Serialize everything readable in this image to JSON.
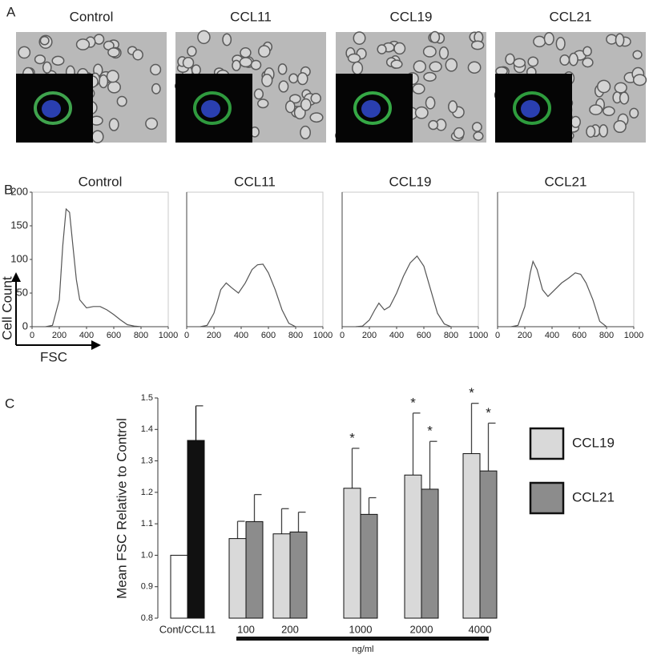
{
  "panel_labels": [
    "A",
    "B",
    "C"
  ],
  "images": {
    "titles": [
      "Control",
      "CCL11",
      "CCL19",
      "CCL21"
    ]
  },
  "flow_axes": {
    "y_label": "Cell Count",
    "x_label": "FSC"
  },
  "chart_data": [
    {
      "type": "line",
      "title": "Control",
      "color": "#555555",
      "x": [
        100,
        150,
        200,
        225,
        250,
        275,
        300,
        325,
        350,
        400,
        450,
        500,
        550,
        600,
        650,
        700,
        750,
        800
      ],
      "values": [
        0,
        2,
        40,
        120,
        175,
        170,
        120,
        70,
        40,
        28,
        30,
        30,
        25,
        18,
        10,
        3,
        1,
        0
      ],
      "xlim": [
        0,
        1000
      ],
      "ylim": [
        0,
        200
      ],
      "xticks": [
        0,
        200,
        400,
        600,
        800,
        1000
      ],
      "yticks": [
        0,
        50,
        100,
        150,
        200
      ]
    },
    {
      "type": "line",
      "title": "CCL11",
      "color": "#555555",
      "x": [
        100,
        150,
        200,
        250,
        290,
        330,
        380,
        430,
        480,
        520,
        560,
        600,
        650,
        700,
        750,
        800
      ],
      "values": [
        0,
        2,
        20,
        55,
        65,
        58,
        50,
        65,
        85,
        92,
        93,
        80,
        55,
        25,
        5,
        0
      ],
      "xlim": [
        0,
        1000
      ],
      "ylim": [
        0,
        200
      ],
      "xticks": [
        0,
        200,
        400,
        600,
        800,
        1000
      ]
    },
    {
      "type": "line",
      "title": "CCL19",
      "color": "#555555",
      "x": [
        100,
        150,
        200,
        240,
        270,
        310,
        350,
        400,
        450,
        500,
        550,
        600,
        650,
        700,
        750,
        800
      ],
      "values": [
        0,
        1,
        10,
        25,
        35,
        25,
        30,
        50,
        75,
        95,
        105,
        90,
        55,
        20,
        4,
        0
      ],
      "xlim": [
        0,
        1000
      ],
      "ylim": [
        0,
        200
      ],
      "xticks": [
        0,
        200,
        400,
        600,
        800,
        1000
      ]
    },
    {
      "type": "line",
      "title": "CCL21",
      "color": "#555555",
      "x": [
        100,
        150,
        200,
        240,
        260,
        290,
        330,
        370,
        420,
        470,
        520,
        570,
        610,
        650,
        700,
        750,
        800
      ],
      "values": [
        0,
        2,
        30,
        80,
        97,
        85,
        55,
        45,
        55,
        65,
        72,
        80,
        78,
        65,
        40,
        8,
        0
      ],
      "xlim": [
        0,
        1000
      ],
      "ylim": [
        0,
        200
      ],
      "xticks": [
        0,
        200,
        400,
        600,
        800,
        1000
      ]
    },
    {
      "type": "bar",
      "y_label": "Mean FSC Relative to Control",
      "x_label": "ng/ml",
      "categories": [
        "Cont/CCL11",
        "100",
        "200",
        "1000",
        "2000",
        "4000"
      ],
      "ylim": [
        0.8,
        1.5
      ],
      "yticks": [
        0.8,
        0.9,
        {
          "value": 1,
          "label": "1.0"
        },
        1.1,
        1.2,
        1.3,
        1.4,
        1.5
      ],
      "series": [
        {
          "color": "#ffffff",
          "values": [
            1.0,
            null,
            null,
            null,
            null,
            null
          ]
        },
        {
          "color": "#111111",
          "values": [
            1.365,
            null,
            null,
            null,
            null,
            null
          ],
          "errors": [
            0.11,
            null,
            null,
            null,
            null,
            null
          ]
        },
        {
          "name": "CCL19",
          "color": "#d9d9d9",
          "values": [
            null,
            1.053,
            1.068,
            1.213,
            1.255,
            1.323
          ],
          "errors": [
            null,
            0.055,
            0.08,
            0.127,
            0.197,
            0.16
          ],
          "annotations": [
            null,
            null,
            null,
            "*",
            "*",
            "*"
          ]
        },
        {
          "name": "CCL21",
          "color": "#8c8c8c",
          "values": [
            null,
            1.107,
            1.074,
            1.13,
            1.21,
            1.268
          ],
          "errors": [
            null,
            0.086,
            0.063,
            0.053,
            0.152,
            0.152
          ],
          "annotations": [
            null,
            null,
            null,
            null,
            "*",
            "*"
          ]
        }
      ]
    }
  ]
}
